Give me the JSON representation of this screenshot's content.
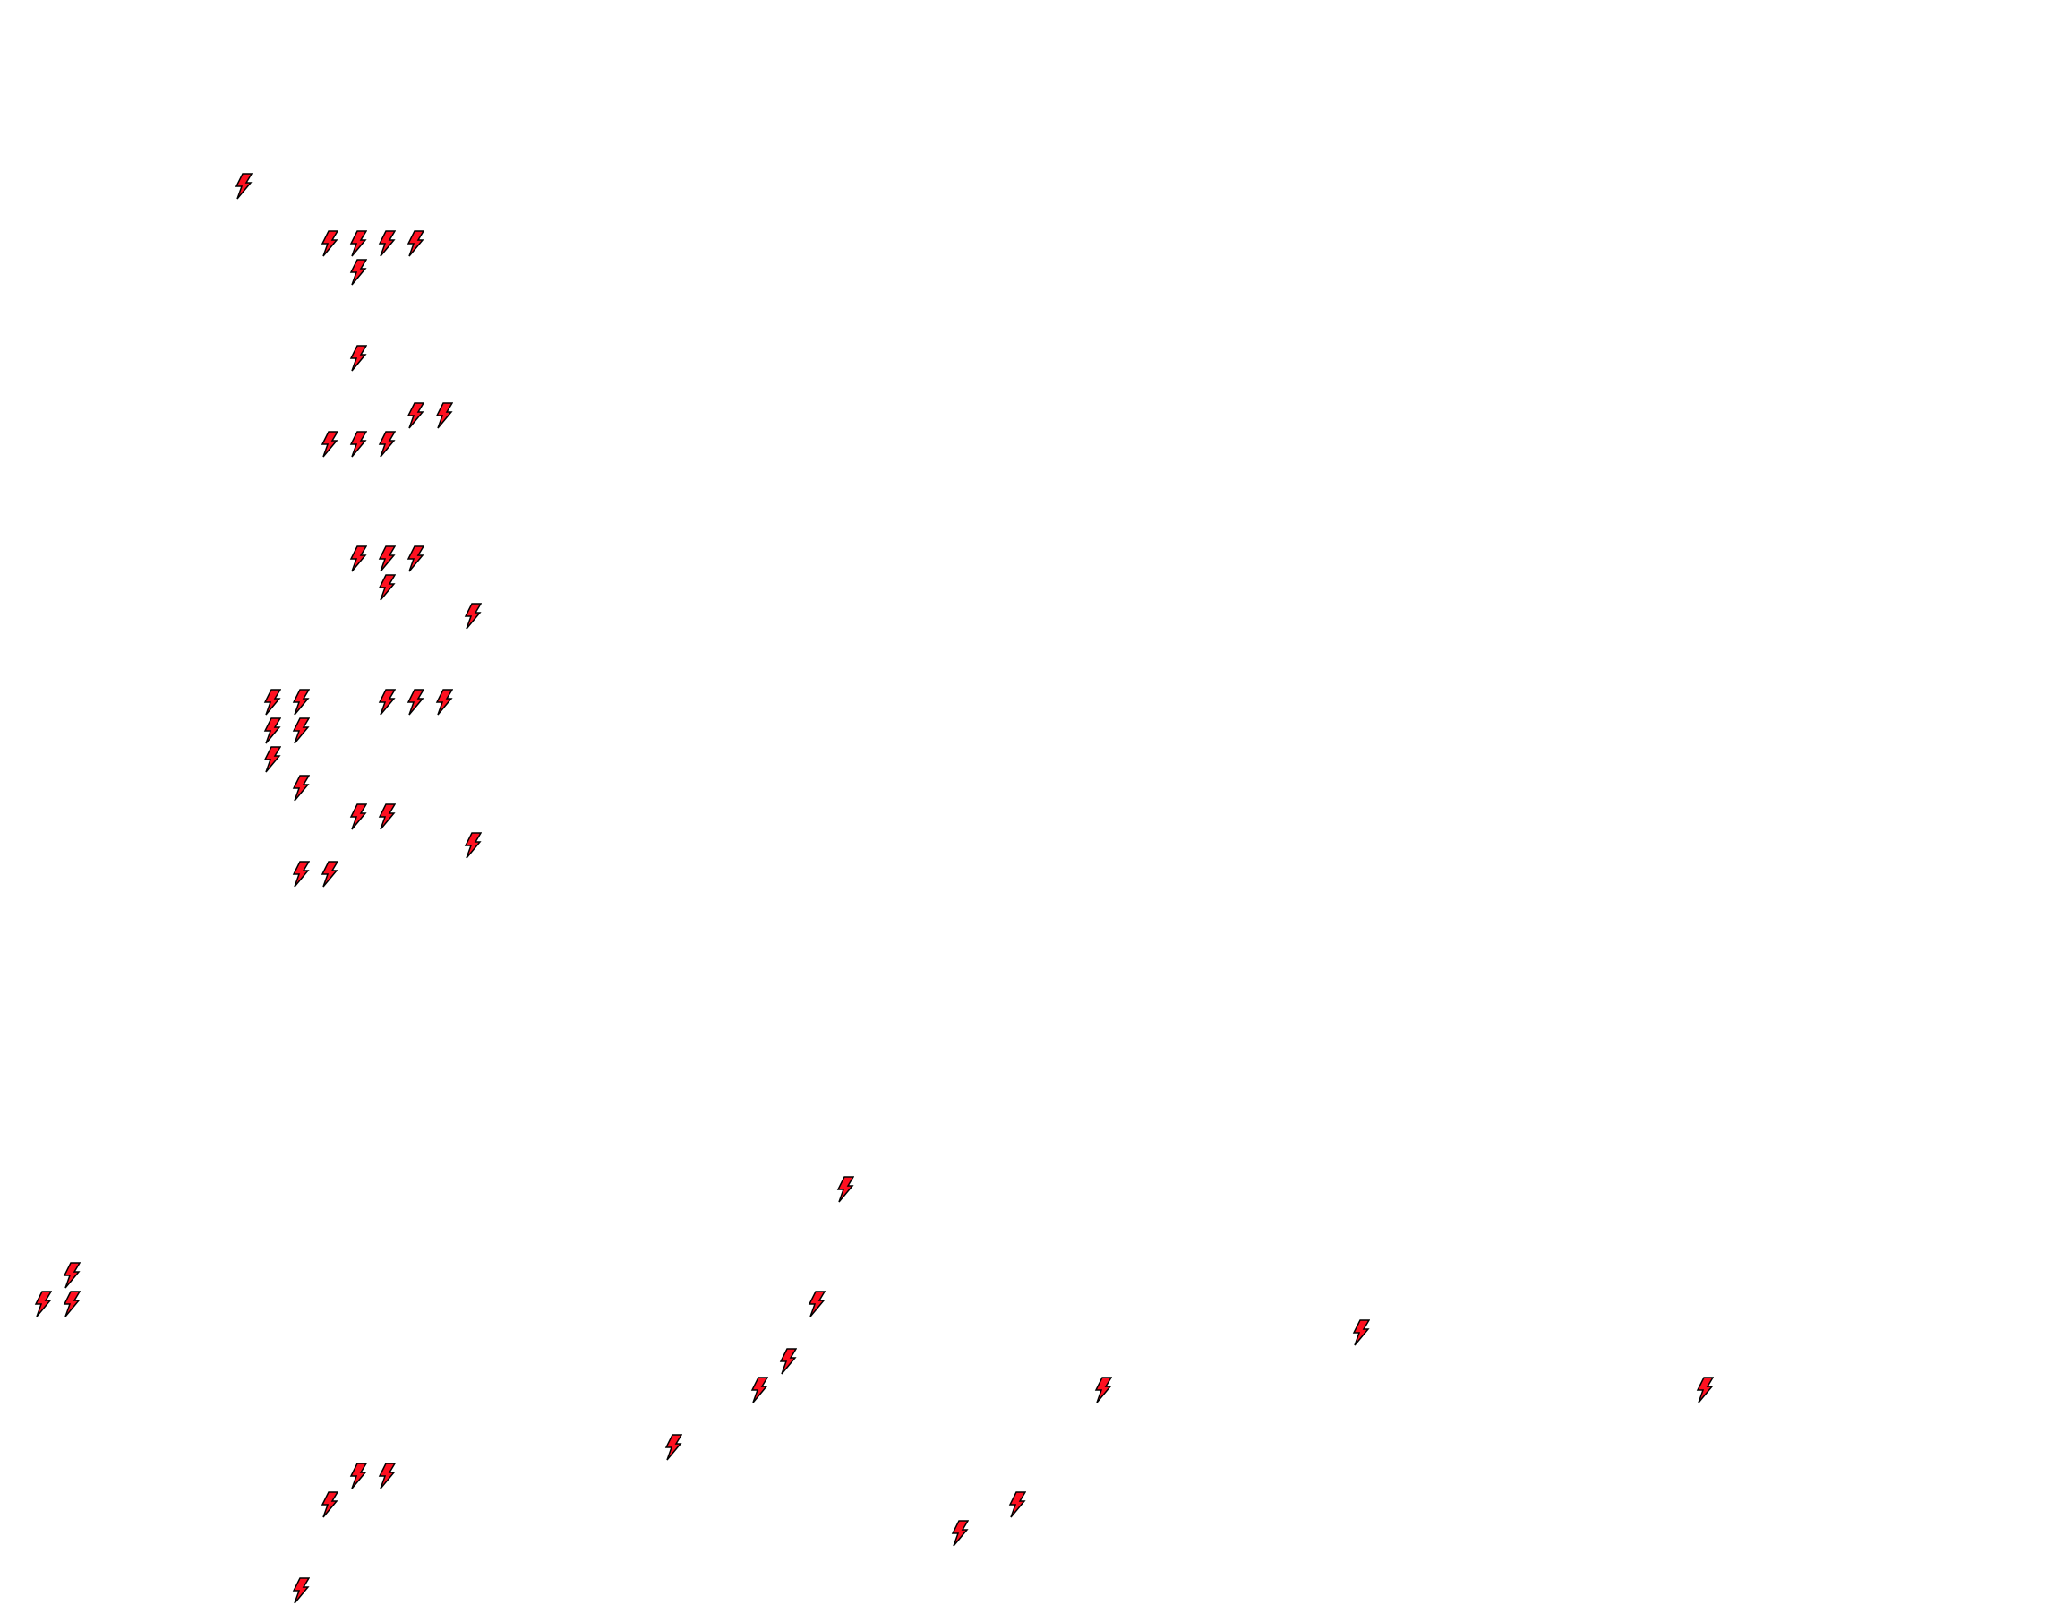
{
  "board": {
    "background": "#ffffff",
    "item": {
      "icon": "lightning-bolt-icon",
      "fill": "#ff1020",
      "stroke": "#000000"
    }
  }
}
